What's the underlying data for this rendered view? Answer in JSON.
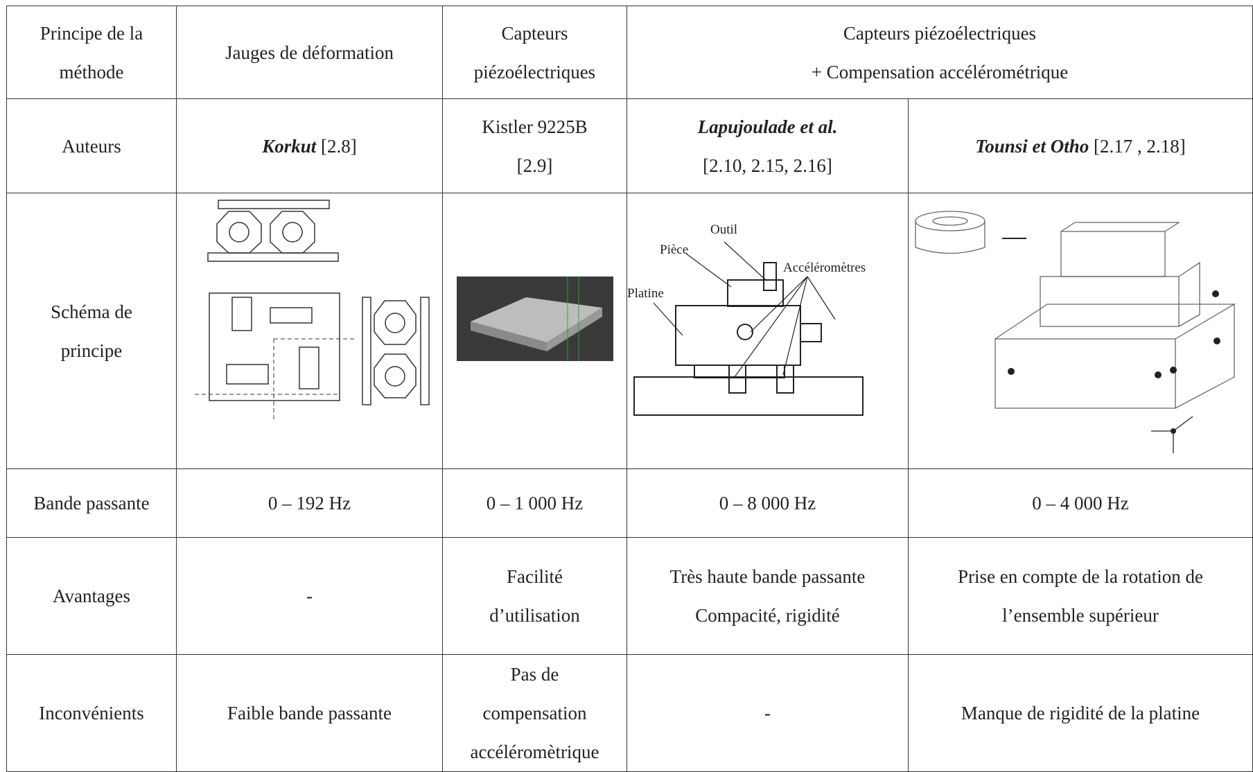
{
  "table": {
    "header": [
      [
        "Principe de la",
        "méthode"
      ],
      [
        "Jauges de déformation"
      ],
      [
        "Capteurs",
        "piézoélectriques"
      ],
      [
        "Capteurs piézoélectriques",
        "+ Compensation accélérométrique"
      ]
    ],
    "rows": [
      {
        "label": [
          "Auteurs"
        ],
        "cells": [
          {
            "name": "Korkut",
            "ref": "[2.8]"
          },
          {
            "lines": [
              "Kistler 9225B",
              "[2.9]"
            ]
          },
          {
            "name": "Lapujoulade et al.",
            "ref": "[2.10, 2.15, 2.16]"
          },
          {
            "name": "Tounsi et Otho",
            "ref": "[2.17 , 2.18]"
          }
        ]
      },
      {
        "label": [
          "Schéma de",
          "principe"
        ],
        "figure_labels": {
          "outil": "Outil",
          "piece": "Pièce",
          "platine": "Platine",
          "accelerometres": "Accéléromètres"
        }
      },
      {
        "label": [
          "Bande passante"
        ],
        "cells": [
          [
            "0 – 192 Hz"
          ],
          [
            "0 – 1 000 Hz"
          ],
          [
            "0 – 8 000 Hz"
          ],
          [
            "0 – 4 000 Hz"
          ]
        ]
      },
      {
        "label": [
          "Avantages"
        ],
        "cells": [
          [
            "-"
          ],
          [
            "Facilité",
            "d’utilisation"
          ],
          [
            "Très haute bande passante",
            "Compacité, rigidité"
          ],
          [
            "Prise en compte de la rotation de",
            "l’ensemble supérieur"
          ]
        ]
      },
      {
        "label": [
          "Inconvénients"
        ],
        "cells": [
          [
            "Faible bande passante"
          ],
          [
            "Pas de",
            "compensation",
            "accéléromètrique"
          ],
          [
            "-"
          ],
          [
            "Manque de rigidité de la platine"
          ]
        ]
      }
    ]
  }
}
